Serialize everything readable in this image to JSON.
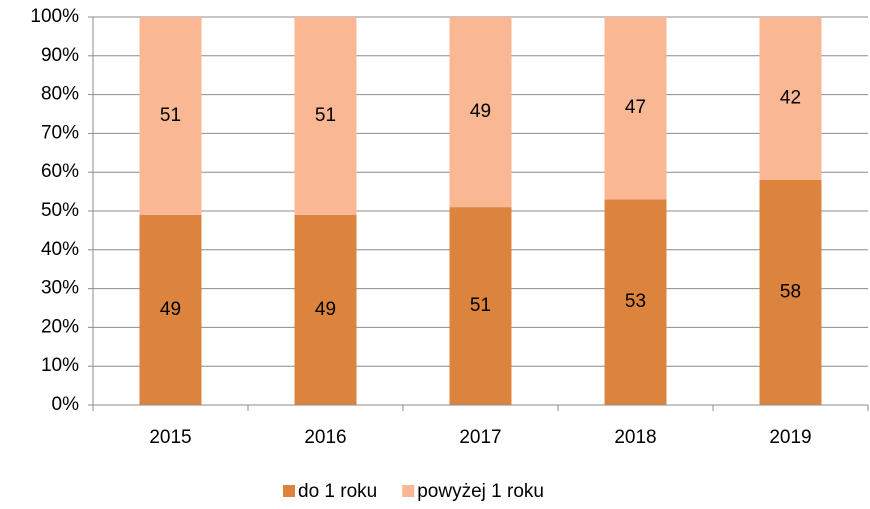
{
  "chart_data": {
    "type": "stacked_bar",
    "categories": [
      "2015",
      "2016",
      "2017",
      "2018",
      "2019"
    ],
    "series": [
      {
        "name": "do 1 roku",
        "color": "#dc843e",
        "values": [
          49,
          49,
          51,
          53,
          58
        ]
      },
      {
        "name": "powyżej 1 roku",
        "color": "#f9b793",
        "values": [
          51,
          51,
          49,
          47,
          42
        ]
      }
    ],
    "ylim": [
      0,
      100
    ],
    "yticks": [
      {
        "value": 0,
        "label": "0%"
      },
      {
        "value": 10,
        "label": "10%"
      },
      {
        "value": 20,
        "label": "20%"
      },
      {
        "value": 30,
        "label": "30%"
      },
      {
        "value": 40,
        "label": "40%"
      },
      {
        "value": 50,
        "label": "50%"
      },
      {
        "value": 60,
        "label": "60%"
      },
      {
        "value": 70,
        "label": "70%"
      },
      {
        "value": 80,
        "label": "80%"
      },
      {
        "value": 90,
        "label": "90%"
      },
      {
        "value": 100,
        "label": "100%"
      }
    ],
    "grid": true,
    "legend": "bottom"
  }
}
